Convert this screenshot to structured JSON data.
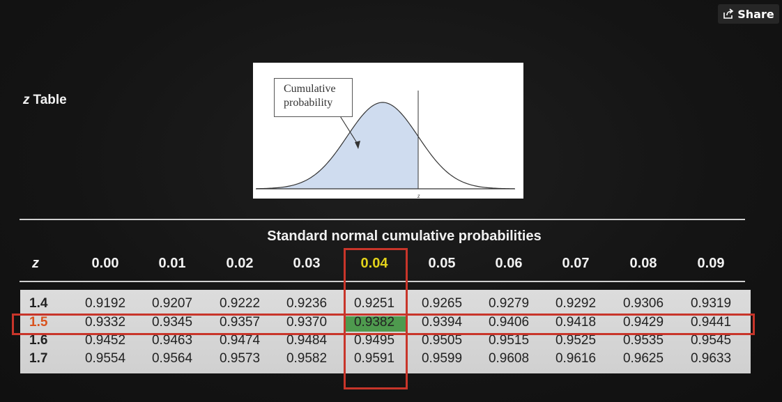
{
  "share": {
    "label": "Share",
    "icon": "share-arrow-icon"
  },
  "title": {
    "z_symbol": "z",
    "text": "Table"
  },
  "figure": {
    "callout_line1": "Cumulative",
    "callout_line2": "probability",
    "axis_label": "z",
    "fill_color": "#cfdcef"
  },
  "table": {
    "caption": "Standard normal cumulative probabilities",
    "z_header": "z",
    "columns": [
      "0.00",
      "0.01",
      "0.02",
      "0.03",
      "0.04",
      "0.05",
      "0.06",
      "0.07",
      "0.08",
      "0.09"
    ],
    "highlight_column": "0.04",
    "highlight_row": "1.5",
    "rows": [
      {
        "z": "1.4",
        "values": [
          "0.9192",
          "0.9207",
          "0.9222",
          "0.9236",
          "0.9251",
          "0.9265",
          "0.9279",
          "0.9292",
          "0.9306",
          "0.9319"
        ]
      },
      {
        "z": "1.5",
        "values": [
          "0.9332",
          "0.9345",
          "0.9357",
          "0.9370",
          "0.9382",
          "0.9394",
          "0.9406",
          "0.9418",
          "0.9429",
          "0.9441"
        ]
      },
      {
        "z": "1.6",
        "values": [
          "0.9452",
          "0.9463",
          "0.9474",
          "0.9484",
          "0.9495",
          "0.9505",
          "0.9515",
          "0.9525",
          "0.9535",
          "0.9545"
        ]
      },
      {
        "z": "1.7",
        "values": [
          "0.9554",
          "0.9564",
          "0.9573",
          "0.9582",
          "0.9591",
          "0.9599",
          "0.9608",
          "0.9616",
          "0.9625",
          "0.9633"
        ]
      }
    ],
    "colors": {
      "highlight_header": "#e2d21a",
      "highlight_z": "#d9531e",
      "highlight_cell": "#4e9a4e",
      "box_outline": "#c8352a"
    }
  }
}
